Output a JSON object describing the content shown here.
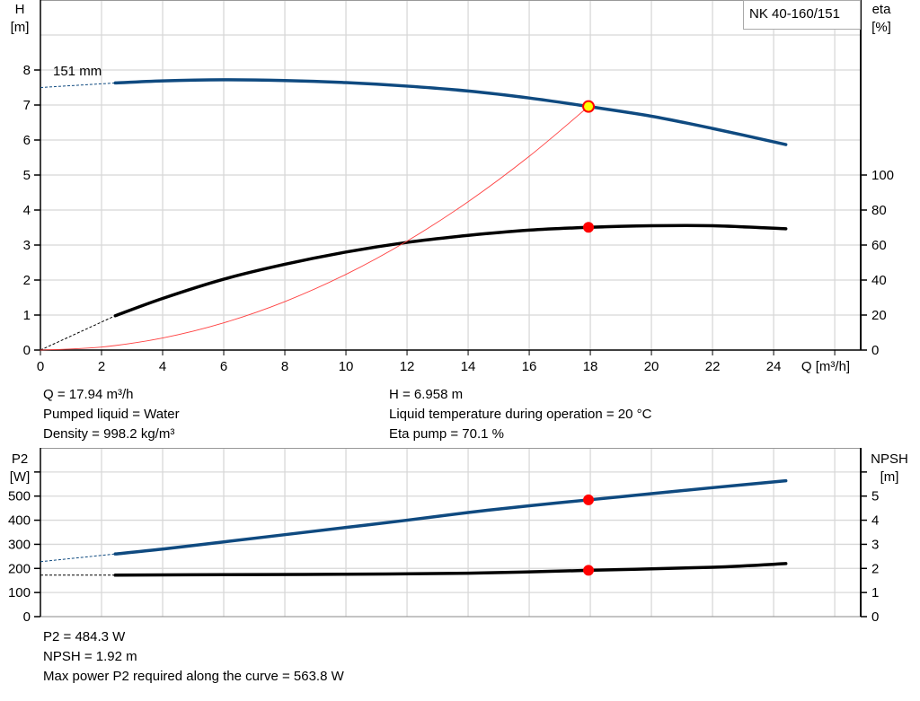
{
  "legend": {
    "model": "NK 40-160/151"
  },
  "info_top_left": [
    "Q = 17.94 m³/h",
    "Pumped liquid = Water",
    "Density = 998.2 kg/m³"
  ],
  "info_top_right": [
    "H = 6.958 m",
    "Liquid temperature during operation = 20 °C",
    "Eta pump = 70.1 %"
  ],
  "info_bottom": [
    "P2 = 484.3 W",
    "NPSH = 1.92 m",
    "Max power P2 required along the curve = 563.8 W"
  ],
  "colors": {
    "head": "#0f4a80",
    "eta": "#000000",
    "system": "#ff4040",
    "duty_point": "#ff0000",
    "duty_fill": "#ffff00",
    "grid": "#d8d8d8"
  },
  "chart_data": [
    {
      "type": "line",
      "xlabel": "Q [m³/h]",
      "ylabel_left": [
        "H",
        "[m]"
      ],
      "ylabel_right": [
        "eta",
        "[%]"
      ],
      "xlim": [
        0,
        26.85
      ],
      "ylim_left": [
        0,
        10
      ],
      "ylim_right": [
        0,
        200
      ],
      "x_ticks": [
        0,
        2,
        4,
        6,
        8,
        10,
        12,
        14,
        16,
        18,
        20,
        22,
        24
      ],
      "y_ticks_left": [
        0,
        1,
        2,
        3,
        4,
        5,
        6,
        7,
        8
      ],
      "y_ticks_right": [
        0,
        20,
        40,
        60,
        80,
        100
      ],
      "grid": true,
      "curve_label": "151 mm",
      "series": [
        {
          "key": "head",
          "axis": "left",
          "x": [
            2.45,
            4,
            6,
            8,
            10,
            12,
            14,
            16,
            17.94,
            20,
            22,
            24.4
          ],
          "y": [
            7.63,
            7.69,
            7.72,
            7.7,
            7.64,
            7.54,
            7.4,
            7.2,
            6.958,
            6.68,
            6.33,
            5.87
          ],
          "extrapolated": {
            "x": [
              0,
              2.45
            ],
            "y": [
              7.5,
              7.63
            ]
          }
        },
        {
          "key": "eta",
          "axis": "right",
          "x": [
            2.45,
            4,
            6,
            8,
            10,
            12,
            14,
            16,
            17.94,
            20,
            22,
            24.4
          ],
          "y": [
            19.6,
            29.5,
            40.5,
            49,
            56,
            61.5,
            65.5,
            68.5,
            70.1,
            71,
            71,
            69.3
          ],
          "extrapolated": {
            "x": [
              0,
              2.45
            ],
            "y": [
              0,
              19.6
            ]
          }
        },
        {
          "key": "system",
          "axis": "left",
          "x": [
            0,
            2,
            4,
            6,
            8,
            10,
            12,
            14,
            16,
            17.94
          ],
          "y": [
            0,
            0.086,
            0.346,
            0.778,
            1.384,
            2.162,
            3.113,
            4.238,
            5.535,
            6.958
          ]
        }
      ],
      "duty_points": [
        {
          "key": "head",
          "x": 17.94,
          "y": 6.958
        },
        {
          "key": "eta",
          "x": 17.94,
          "y": 70.1
        }
      ]
    },
    {
      "type": "line",
      "ylabel_left": [
        "P2",
        "[W]"
      ],
      "ylabel_right": [
        "NPSH",
        "[m]"
      ],
      "xlim": [
        0,
        26.85
      ],
      "ylim_left": [
        0,
        700
      ],
      "ylim_right": [
        0,
        7
      ],
      "y_ticks_left": [
        0,
        100,
        200,
        300,
        400,
        500
      ],
      "y_ticks_right": [
        0,
        1,
        2,
        3,
        4,
        5
      ],
      "grid": true,
      "series": [
        {
          "key": "p2",
          "axis": "left",
          "x": [
            2.45,
            4,
            6,
            8,
            10,
            12,
            14,
            16,
            17.94,
            20,
            22,
            24.4
          ],
          "y": [
            260,
            280,
            310,
            340,
            370,
            400,
            432,
            460,
            484.3,
            510,
            535,
            563.8
          ],
          "extrapolated": {
            "x": [
              0,
              2.45
            ],
            "y": [
              228,
              260
            ]
          }
        },
        {
          "key": "npsh",
          "axis": "right",
          "x": [
            2.45,
            6,
            10,
            14,
            17.94,
            22,
            24.4
          ],
          "y": [
            1.72,
            1.74,
            1.76,
            1.8,
            1.92,
            2.05,
            2.2
          ],
          "extrapolated": {
            "x": [
              0,
              2.45
            ],
            "y": [
              1.72,
              1.72
            ]
          }
        }
      ],
      "duty_points": [
        {
          "key": "p2",
          "x": 17.94,
          "y": 484.3
        },
        {
          "key": "npsh",
          "x": 17.94,
          "y": 1.92
        }
      ]
    }
  ]
}
